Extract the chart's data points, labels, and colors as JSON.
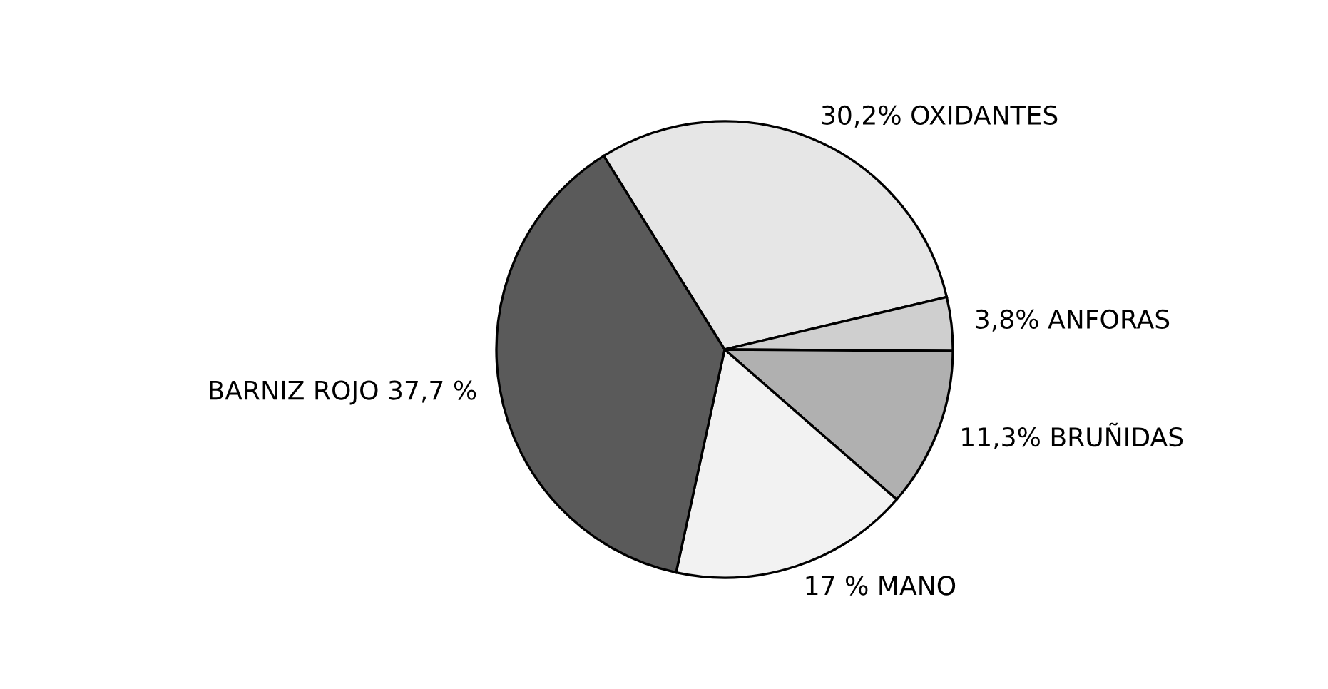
{
  "chart_data": {
    "type": "pie",
    "categories": [
      "30,2% OXIDANTES",
      "3,8% ANFORAS",
      "11,3% BRUÑIDAS",
      "17 % MANO",
      "BARNIZ ROJO 37,7 %"
    ],
    "values": [
      30.2,
      3.8,
      11.3,
      17,
      37.7
    ],
    "colors": [
      "#e6e6e6",
      "#cfcfcf",
      "#b0b0b0",
      "#f2f2f2",
      "#5a5a5a"
    ]
  }
}
